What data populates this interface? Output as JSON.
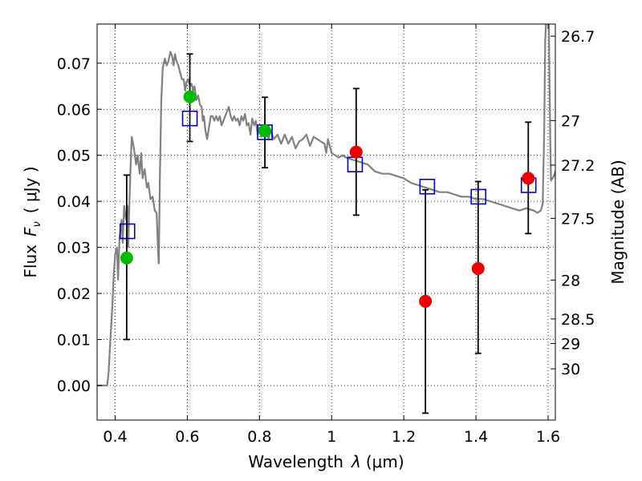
{
  "chart_data": {
    "type": "scatter",
    "xlabel": "Wavelength",
    "xlabel_symbol": "λ",
    "xlabel_unit": "(μm)",
    "ylabel": "Flux",
    "ylabel_symbol": "F",
    "ylabel_subscript": "ν",
    "ylabel_unit": "( μJy )",
    "y2label": "Magnitude (AB)",
    "xlim": [
      0.35,
      1.62
    ],
    "ylim": [
      -0.0075,
      0.0785
    ],
    "grid": true,
    "x_ticks": [
      {
        "value": 0.4,
        "label": "0.4"
      },
      {
        "value": 0.6,
        "label": "0.6"
      },
      {
        "value": 0.8,
        "label": "0.8"
      },
      {
        "value": 1.0,
        "label": "1"
      },
      {
        "value": 1.2,
        "label": "1.2"
      },
      {
        "value": 1.4,
        "label": "1.4"
      },
      {
        "value": 1.6,
        "label": "1.6"
      }
    ],
    "y_ticks": [
      {
        "value": 0.0,
        "label": "0.00"
      },
      {
        "value": 0.01,
        "label": "0.01"
      },
      {
        "value": 0.02,
        "label": "0.02"
      },
      {
        "value": 0.03,
        "label": "0.03"
      },
      {
        "value": 0.04,
        "label": "0.04"
      },
      {
        "value": 0.05,
        "label": "0.05"
      },
      {
        "value": 0.06,
        "label": "0.06"
      },
      {
        "value": 0.07,
        "label": "0.07"
      }
    ],
    "mag_ticks": [
      {
        "mag": 26.7,
        "label": "26.7"
      },
      {
        "mag": 27.0,
        "label": "27"
      },
      {
        "mag": 27.2,
        "label": "27.2"
      },
      {
        "mag": 27.5,
        "label": "27.5"
      },
      {
        "mag": 28.0,
        "label": "28"
      },
      {
        "mag": 28.5,
        "label": "28.5"
      },
      {
        "mag": 29.0,
        "label": "29"
      },
      {
        "mag": 30.0,
        "label": "30"
      }
    ],
    "colors": {
      "model": "#808080",
      "model_photometry": "#0000cc",
      "optical": "#00bb00",
      "nir": "#ee0000",
      "errorbar": "#000000"
    },
    "series": [
      {
        "name": "model spectrum",
        "kind": "line",
        "points": [
          [
            0.35,
            0.0
          ],
          [
            0.378,
            0.0
          ],
          [
            0.382,
            0.003
          ],
          [
            0.386,
            0.009
          ],
          [
            0.392,
            0.017
          ],
          [
            0.396,
            0.024
          ],
          [
            0.4,
            0.0285
          ],
          [
            0.405,
            0.03
          ],
          [
            0.408,
            0.023
          ],
          [
            0.412,
            0.032
          ],
          [
            0.418,
            0.036
          ],
          [
            0.421,
            0.031
          ],
          [
            0.425,
            0.039
          ],
          [
            0.43,
            0.036
          ],
          [
            0.434,
            0.039
          ],
          [
            0.436,
            0.03
          ],
          [
            0.44,
            0.041
          ],
          [
            0.443,
            0.048
          ],
          [
            0.446,
            0.054
          ],
          [
            0.452,
            0.0515
          ],
          [
            0.458,
            0.048
          ],
          [
            0.462,
            0.05
          ],
          [
            0.468,
            0.046
          ],
          [
            0.472,
            0.0505
          ],
          [
            0.476,
            0.045
          ],
          [
            0.482,
            0.047
          ],
          [
            0.488,
            0.043
          ],
          [
            0.492,
            0.044
          ],
          [
            0.498,
            0.0405
          ],
          [
            0.504,
            0.041
          ],
          [
            0.51,
            0.038
          ],
          [
            0.515,
            0.0375
          ],
          [
            0.519,
            0.029
          ],
          [
            0.521,
            0.0265
          ],
          [
            0.524,
            0.045
          ],
          [
            0.528,
            0.062
          ],
          [
            0.532,
            0.069
          ],
          [
            0.538,
            0.071
          ],
          [
            0.543,
            0.0695
          ],
          [
            0.548,
            0.0705
          ],
          [
            0.553,
            0.0725
          ],
          [
            0.558,
            0.0715
          ],
          [
            0.562,
            0.0695
          ],
          [
            0.566,
            0.072
          ],
          [
            0.57,
            0.0705
          ],
          [
            0.575,
            0.0695
          ],
          [
            0.58,
            0.068
          ],
          [
            0.585,
            0.0665
          ],
          [
            0.59,
            0.0665
          ],
          [
            0.594,
            0.064
          ],
          [
            0.598,
            0.066
          ],
          [
            0.602,
            0.0665
          ],
          [
            0.608,
            0.065
          ],
          [
            0.612,
            0.0655
          ],
          [
            0.616,
            0.064
          ],
          [
            0.62,
            0.065
          ],
          [
            0.625,
            0.062
          ],
          [
            0.63,
            0.063
          ],
          [
            0.635,
            0.061
          ],
          [
            0.64,
            0.0605
          ],
          [
            0.643,
            0.0575
          ],
          [
            0.646,
            0.0585
          ],
          [
            0.65,
            0.0555
          ],
          [
            0.655,
            0.0535
          ],
          [
            0.66,
            0.056
          ],
          [
            0.665,
            0.0585
          ],
          [
            0.67,
            0.0585
          ],
          [
            0.675,
            0.0575
          ],
          [
            0.68,
            0.0585
          ],
          [
            0.685,
            0.0575
          ],
          [
            0.69,
            0.0585
          ],
          [
            0.695,
            0.0565
          ],
          [
            0.7,
            0.0575
          ],
          [
            0.705,
            0.0585
          ],
          [
            0.71,
            0.0595
          ],
          [
            0.715,
            0.0605
          ],
          [
            0.72,
            0.0585
          ],
          [
            0.725,
            0.0575
          ],
          [
            0.73,
            0.0585
          ],
          [
            0.735,
            0.0575
          ],
          [
            0.74,
            0.058
          ],
          [
            0.745,
            0.0565
          ],
          [
            0.75,
            0.0585
          ],
          [
            0.755,
            0.0575
          ],
          [
            0.76,
            0.059
          ],
          [
            0.765,
            0.0565
          ],
          [
            0.77,
            0.057
          ],
          [
            0.775,
            0.0545
          ],
          [
            0.78,
            0.058
          ],
          [
            0.785,
            0.0565
          ],
          [
            0.79,
            0.0575
          ],
          [
            0.795,
            0.0545
          ],
          [
            0.8,
            0.056
          ],
          [
            0.805,
            0.054
          ],
          [
            0.81,
            0.056
          ],
          [
            0.815,
            0.0545
          ],
          [
            0.82,
            0.0555
          ],
          [
            0.825,
            0.0535
          ],
          [
            0.83,
            0.0555
          ],
          [
            0.84,
            0.0535
          ],
          [
            0.85,
            0.0545
          ],
          [
            0.86,
            0.0525
          ],
          [
            0.87,
            0.0545
          ],
          [
            0.88,
            0.0525
          ],
          [
            0.89,
            0.054
          ],
          [
            0.9,
            0.0515
          ],
          [
            0.91,
            0.053
          ],
          [
            0.92,
            0.0535
          ],
          [
            0.93,
            0.0545
          ],
          [
            0.94,
            0.052
          ],
          [
            0.95,
            0.054
          ],
          [
            0.96,
            0.0535
          ],
          [
            0.97,
            0.053
          ],
          [
            0.98,
            0.0525
          ],
          [
            0.985,
            0.0505
          ],
          [
            0.99,
            0.0535
          ],
          [
            1.0,
            0.0505
          ],
          [
            1.01,
            0.05
          ],
          [
            1.02,
            0.0495
          ],
          [
            1.03,
            0.05
          ],
          [
            1.04,
            0.0495
          ],
          [
            1.06,
            0.049
          ],
          [
            1.08,
            0.0485
          ],
          [
            1.1,
            0.048
          ],
          [
            1.12,
            0.0465
          ],
          [
            1.14,
            0.046
          ],
          [
            1.16,
            0.046
          ],
          [
            1.18,
            0.0455
          ],
          [
            1.2,
            0.045
          ],
          [
            1.22,
            0.044
          ],
          [
            1.24,
            0.0435
          ],
          [
            1.26,
            0.043
          ],
          [
            1.28,
            0.0425
          ],
          [
            1.3,
            0.042
          ],
          [
            1.32,
            0.042
          ],
          [
            1.34,
            0.0415
          ],
          [
            1.36,
            0.041
          ],
          [
            1.38,
            0.041
          ],
          [
            1.4,
            0.0405
          ],
          [
            1.42,
            0.0405
          ],
          [
            1.44,
            0.04
          ],
          [
            1.46,
            0.0395
          ],
          [
            1.48,
            0.039
          ],
          [
            1.5,
            0.0385
          ],
          [
            1.52,
            0.038
          ],
          [
            1.54,
            0.0385
          ],
          [
            1.56,
            0.038
          ],
          [
            1.57,
            0.0375
          ],
          [
            1.58,
            0.038
          ],
          [
            1.585,
            0.0395
          ],
          [
            1.589,
            0.055
          ],
          [
            1.592,
            0.075
          ],
          [
            1.594,
            0.0785
          ]
        ]
      },
      {
        "name": "model spectrum (red end)",
        "kind": "line",
        "points": [
          [
            1.602,
            0.0785
          ],
          [
            1.604,
            0.065
          ],
          [
            1.606,
            0.053
          ],
          [
            1.608,
            0.0445
          ],
          [
            1.612,
            0.045
          ],
          [
            1.616,
            0.0455
          ],
          [
            1.62,
            0.0465
          ]
        ]
      },
      {
        "name": "model photometry",
        "kind": "open-square",
        "points": [
          [
            0.434,
            0.0335
          ],
          [
            0.607,
            0.058
          ],
          [
            0.815,
            0.055
          ],
          [
            1.065,
            0.048
          ],
          [
            1.265,
            0.0432
          ],
          [
            1.407,
            0.041
          ],
          [
            1.546,
            0.0435
          ]
        ]
      },
      {
        "name": "optical detections",
        "kind": "filled-circle",
        "color_key": "optical",
        "points": [
          [
            0.432,
            0.0277
          ],
          [
            0.607,
            0.0627
          ],
          [
            0.815,
            0.0553
          ]
        ],
        "err_lo": [
          0.0177,
          0.0097,
          0.008
        ],
        "err_hi": [
          0.018,
          0.0093,
          0.0073
        ]
      },
      {
        "name": "near-IR detections",
        "kind": "filled-circle",
        "color_key": "nir",
        "points": [
          [
            1.068,
            0.0507
          ],
          [
            1.26,
            0.0183
          ],
          [
            1.406,
            0.0254
          ],
          [
            1.545,
            0.045
          ]
        ],
        "err_lo": [
          0.0137,
          0.0243,
          0.0184,
          0.012
        ],
        "err_hi": [
          0.0138,
          0.0242,
          0.0189,
          0.0122
        ]
      }
    ]
  }
}
